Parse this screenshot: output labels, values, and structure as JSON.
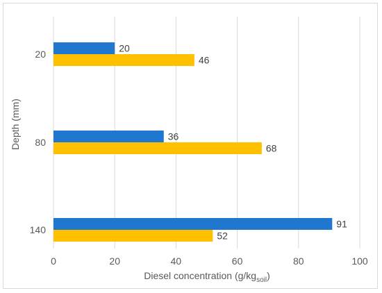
{
  "chart_data": {
    "type": "bar",
    "orientation": "horizontal",
    "categories": [
      "20",
      "80",
      "140"
    ],
    "series": [
      {
        "color": "#1f77d0",
        "values": [
          20,
          36,
          91
        ]
      },
      {
        "color": "#ffc000",
        "values": [
          46,
          68,
          52
        ]
      }
    ],
    "xlabel": {
      "main": "Diesel concentration (g/kg",
      "sub": "soil",
      "tail": ")"
    },
    "ylabel": "Depth (mm)",
    "xlim": [
      0,
      100
    ],
    "xticks": [
      "0",
      "20",
      "40",
      "60",
      "80",
      "100"
    ],
    "grid": "vertical",
    "legend": "none"
  }
}
